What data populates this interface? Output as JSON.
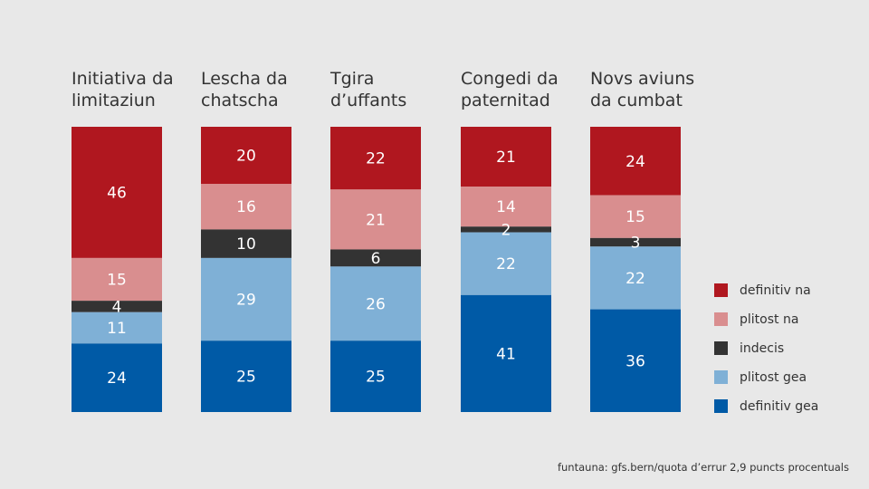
{
  "chart_data": {
    "type": "bar",
    "stacked": true,
    "normalized": true,
    "categories": [
      [
        "Initiativa da",
        "limitaziun"
      ],
      [
        "Lescha da",
        "chatscha"
      ],
      [
        "Tgira",
        "d’uffants"
      ],
      [
        "Congedi da",
        "paternitad"
      ],
      [
        "Novs aviuns",
        "da cumbat"
      ]
    ],
    "series": [
      {
        "name": "definitiv na",
        "color": "#b0171f",
        "values": [
          46,
          20,
          22,
          21,
          24
        ]
      },
      {
        "name": "plitost na",
        "color": "#d98e8f",
        "values": [
          15,
          16,
          21,
          14,
          15
        ]
      },
      {
        "name": "indecis",
        "color": "#333333",
        "values": [
          4,
          10,
          6,
          2,
          3
        ]
      },
      {
        "name": "plitost gea",
        "color": "#7fb0d6",
        "values": [
          11,
          29,
          26,
          22,
          22
        ]
      },
      {
        "name": "definitiv gea",
        "color": "#005aa6",
        "values": [
          24,
          25,
          25,
          41,
          36
        ]
      }
    ],
    "legend_position": "right",
    "source": "funtauna: gfs.bern/quota d’errur 2,9 puncts procentuals"
  }
}
